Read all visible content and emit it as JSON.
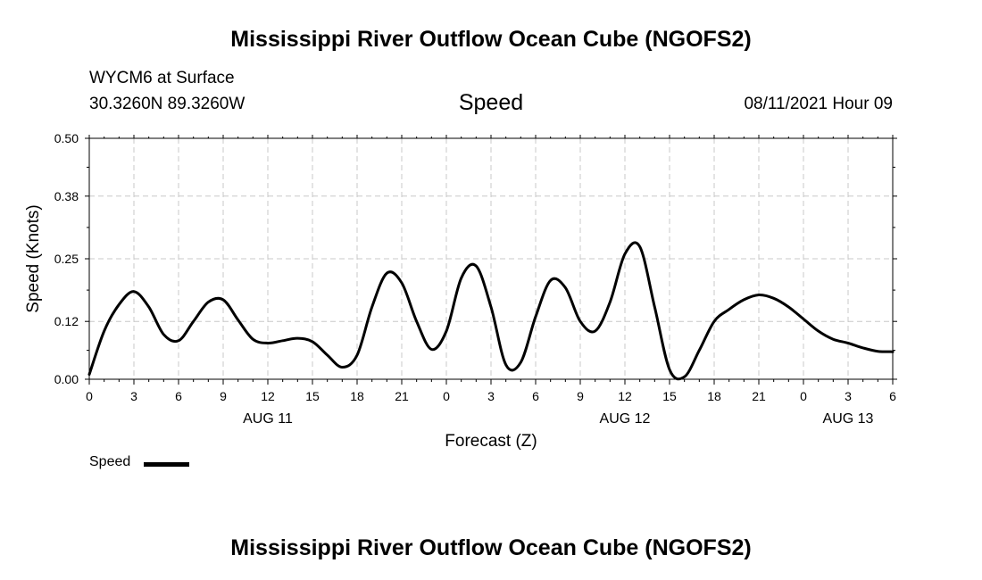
{
  "header": {
    "title": "Mississippi River Outflow Ocean Cube (NGOFS2)",
    "station": "WYCM6 at Surface",
    "coords": "30.3260N  89.3260W",
    "variable": "Speed",
    "datetime": "08/11/2021 Hour 09"
  },
  "footer": {
    "title": "Mississippi River Outflow Ocean Cube (NGOFS2)"
  },
  "legend": {
    "label": "Speed",
    "color": "#000000"
  },
  "chart_data": {
    "type": "line",
    "title": "Speed",
    "xlabel": "Forecast (Z)",
    "ylabel": "Speed (Knots)",
    "xlim": [
      0,
      54
    ],
    "ylim": [
      0,
      0.5
    ],
    "yticks": [
      "0.00",
      "0.12",
      "0.25",
      "0.38",
      "0.50"
    ],
    "xticks": [
      "0",
      "3",
      "6",
      "9",
      "12",
      "15",
      "18",
      "21",
      "0",
      "3",
      "6",
      "9",
      "12",
      "15",
      "18",
      "21",
      "0",
      "3",
      "6"
    ],
    "day_labels": [
      {
        "x": 12,
        "label": "AUG 11"
      },
      {
        "x": 36,
        "label": "AUG 12"
      },
      {
        "x": 51,
        "label": "AUG 13"
      }
    ],
    "grid": true,
    "series": [
      {
        "name": "Speed",
        "color": "#000000",
        "x": [
          0,
          1,
          2,
          3,
          4,
          5,
          6,
          7,
          8,
          9,
          10,
          11,
          12,
          13,
          14,
          15,
          16,
          17,
          18,
          19,
          20,
          21,
          22,
          23,
          24,
          25,
          26,
          27,
          28,
          29,
          30,
          31,
          32,
          33,
          34,
          35,
          36,
          37,
          38,
          39,
          40,
          41,
          42,
          43,
          44,
          45,
          46,
          47,
          48,
          49,
          50,
          51,
          52,
          53,
          54
        ],
        "y": [
          0.01,
          0.1,
          0.155,
          0.182,
          0.15,
          0.093,
          0.08,
          0.12,
          0.16,
          0.165,
          0.123,
          0.083,
          0.075,
          0.08,
          0.085,
          0.078,
          0.05,
          0.025,
          0.05,
          0.15,
          0.22,
          0.2,
          0.12,
          0.062,
          0.1,
          0.21,
          0.235,
          0.15,
          0.03,
          0.035,
          0.13,
          0.205,
          0.19,
          0.12,
          0.1,
          0.16,
          0.26,
          0.275,
          0.15,
          0.02,
          0.005,
          0.06,
          0.12,
          0.145,
          0.165,
          0.175,
          0.168,
          0.15,
          0.125,
          0.1,
          0.083,
          0.075,
          0.065,
          0.058,
          0.057
        ]
      }
    ]
  }
}
